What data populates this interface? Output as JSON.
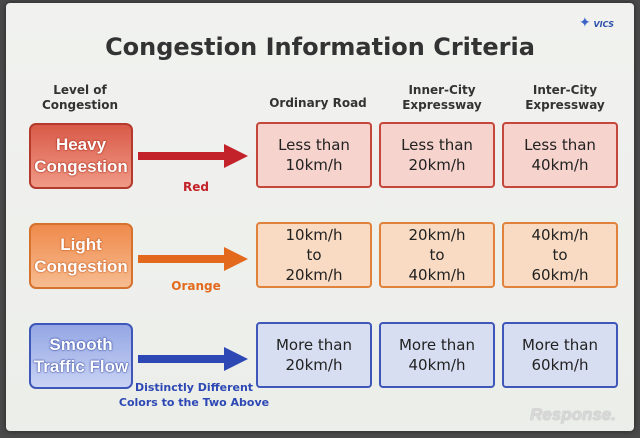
{
  "logo": {
    "text": "VICS",
    "icon": "star-icon"
  },
  "title": "Congestion Information Criteria",
  "headers": {
    "level": "Level of\nCongestion",
    "ordinary": "Ordinary Road",
    "inner": "Inner-City\nExpressway",
    "inter": "Inter-City\nExpressway"
  },
  "rows": [
    {
      "level": "Heavy\nCongestion",
      "color_label": "Red",
      "arrow_color": "#c4222a",
      "cells": [
        "Less than\n10km/h",
        "Less than\n20km/h",
        "Less than\n40km/h"
      ]
    },
    {
      "level": "Light\nCongestion",
      "color_label": "Orange",
      "arrow_color": "#e36a1c",
      "cells": [
        "10km/h\nto\n20km/h",
        "20km/h\nto\n40km/h",
        "40km/h\nto\n60km/h"
      ]
    },
    {
      "level": "Smooth\nTraffic Flow",
      "color_label": "Distinctly Different\nColors to the Two Above",
      "arrow_color": "#2d48b4",
      "cells": [
        "More than\n20km/h",
        "More than\n40km/h",
        "More than\n60km/h"
      ]
    }
  ],
  "watermark": "Response."
}
